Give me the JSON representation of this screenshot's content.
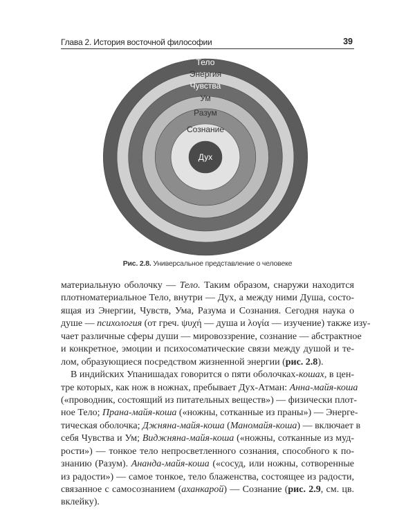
{
  "header": {
    "chapter": "Глава 2. История восточной философии",
    "page_number": "39"
  },
  "figure": {
    "rings": [
      {
        "label": "Тело",
        "color": "#5c5c5c",
        "text_color": "#ffffff"
      },
      {
        "label": "Энергия",
        "color": "#d0d0d0",
        "text_color": "#333333"
      },
      {
        "label": "Чувства",
        "color": "#6c6c6c",
        "text_color": "#ffffff"
      },
      {
        "label": "Ум",
        "color": "#bcbcbc",
        "text_color": "#333333"
      },
      {
        "label": "Разум",
        "color": "#8c8c8c",
        "text_color": "#333333"
      },
      {
        "label": "Сознание",
        "color": "#e2e2e2",
        "text_color": "#333333"
      },
      {
        "label": "Дух",
        "color": "#4a4a4a",
        "text_color": "#ffffff"
      }
    ],
    "caption_number": "Рис. 2.8.",
    "caption_text": " Универсальное представление о человеке"
  },
  "body": {
    "lines": [
      {
        "segs": [
          {
            "t": "материальную оболочку — "
          },
          {
            "t": "Тело.",
            "s": "i"
          },
          {
            "t": " Таким образом, снаружи находится"
          }
        ]
      },
      {
        "segs": [
          {
            "t": "плотноматериальное Тело, внутри — Дух, а между ними Душа, состо-"
          }
        ]
      },
      {
        "segs": [
          {
            "t": "ящая из Энергии, Чувств, Ума, Разума и Сознания. Сегодня наука о"
          }
        ]
      },
      {
        "segs": [
          {
            "t": "душе — "
          },
          {
            "t": "психология",
            "s": "i"
          },
          {
            "t": " (от греч. ψυχή — душа и λογία — изучение) также изу-"
          }
        ]
      },
      {
        "segs": [
          {
            "t": "чает различные сферы души — мировоззрение, сознание — абстрактное"
          }
        ]
      },
      {
        "segs": [
          {
            "t": "и конкретное, эмоции и психосоматические связи между душой и те-"
          }
        ]
      },
      {
        "last": true,
        "segs": [
          {
            "t": "лом, образующиеся посредством жизненной энергии ("
          },
          {
            "t": "рис. 2.8",
            "s": "b"
          },
          {
            "t": ")."
          }
        ]
      },
      {
        "indent": true,
        "segs": [
          {
            "t": "В индийских Упанишадах говорится о пяти оболочках-"
          },
          {
            "t": "кошах",
            "s": "i"
          },
          {
            "t": ", в цен-"
          }
        ]
      },
      {
        "segs": [
          {
            "t": "тре которых, как нож в ножнах, пребывает Дух-Атман: "
          },
          {
            "t": "Анна-майя-коша",
            "s": "i"
          }
        ]
      },
      {
        "segs": [
          {
            "t": "(«проводник, состоящий из питательных веществ») — физически плот-"
          }
        ]
      },
      {
        "segs": [
          {
            "t": "ное Тело; "
          },
          {
            "t": "Прана-майя-коша",
            "s": "i"
          },
          {
            "t": " («ножны, сотканные из праны») — Энерге-"
          }
        ]
      },
      {
        "segs": [
          {
            "t": "тическая оболочка; "
          },
          {
            "t": "Джняна-майя-коша",
            "s": "i"
          },
          {
            "t": " ("
          },
          {
            "t": "Маномайя-коша",
            "s": "i"
          },
          {
            "t": ") — включает в"
          }
        ]
      },
      {
        "segs": [
          {
            "t": "себя Чувства и Ум; "
          },
          {
            "t": "Виджняна-майя-коша",
            "s": "i"
          },
          {
            "t": " («ножны, сотканные из муд-"
          }
        ]
      },
      {
        "segs": [
          {
            "t": "рости») — тонкое тело непросветленного сознания, способного к по-"
          }
        ]
      },
      {
        "segs": [
          {
            "t": "знанию (Разум). "
          },
          {
            "t": "Ананда-майя-коша",
            "s": "i"
          },
          {
            "t": " («сосуд, или ножны, сотворенные"
          }
        ]
      },
      {
        "segs": [
          {
            "t": "из радости») — самое тонкое, тело блаженства, состоящее из радости,"
          }
        ]
      },
      {
        "segs": [
          {
            "t": "связанное с самосознанием ("
          },
          {
            "t": "аханкарой",
            "s": "i"
          },
          {
            "t": ") — Сознание ("
          },
          {
            "t": "рис. 2.9",
            "s": "b"
          },
          {
            "t": ", см. цв."
          }
        ]
      },
      {
        "last": true,
        "segs": [
          {
            "t": "вклейку)."
          }
        ]
      }
    ]
  }
}
